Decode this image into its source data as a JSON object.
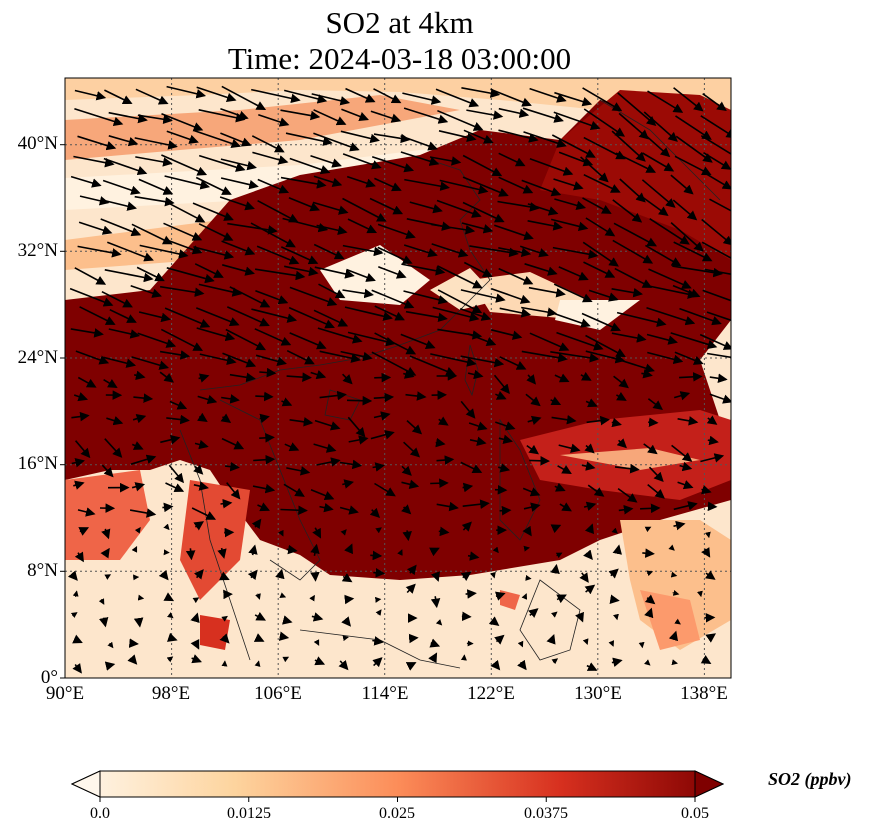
{
  "title": {
    "line1": "SO2 at 4km",
    "line2": "Time: 2024-03-18 03:00:00"
  },
  "map": {
    "extent": {
      "lon_min": 90,
      "lon_max": 140,
      "lat_min": 0,
      "lat_max": 45
    },
    "lat_ticks": [
      "40°N",
      "32°N",
      "24°N",
      "16°N",
      "8°N",
      "0°"
    ],
    "lon_ticks": [
      "90°E",
      "98°E",
      "106°E",
      "114°E",
      "122°E",
      "130°E",
      "138°E"
    ],
    "field": "SO2 concentration with wind vectors",
    "gridlines": "dotted"
  },
  "colorbar": {
    "label": "SO2 (ppbv)",
    "ticks": [
      "0.0",
      "0.0125",
      "0.025",
      "0.0375",
      "0.05"
    ],
    "range": [
      0.0,
      0.05
    ],
    "colormap": [
      "#fff7ec",
      "#fdd49e",
      "#fc8d59",
      "#d7301f",
      "#7f0000"
    ],
    "extend": "both"
  }
}
